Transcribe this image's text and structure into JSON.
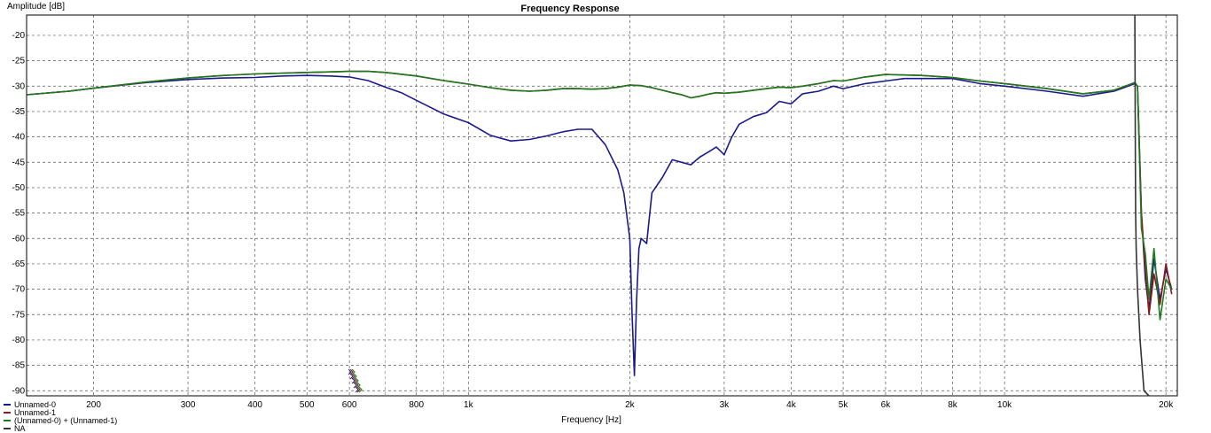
{
  "chart_data": {
    "type": "line",
    "title": "Frequency Response",
    "xlabel": "Frequency [Hz]",
    "ylabel": "Amplitude [dB]",
    "x_scale": "log",
    "xlim": [
      150,
      21000
    ],
    "ylim": [
      -91,
      -16
    ],
    "grid": true,
    "legend_position": "bottom-left",
    "x_ticks": [
      {
        "v": 200,
        "label": "200"
      },
      {
        "v": 300,
        "label": "300"
      },
      {
        "v": 400,
        "label": "400"
      },
      {
        "v": 500,
        "label": "500"
      },
      {
        "v": 600,
        "label": "600"
      },
      {
        "v": 800,
        "label": "800"
      },
      {
        "v": 1000,
        "label": "1k"
      },
      {
        "v": 2000,
        "label": "2k"
      },
      {
        "v": 3000,
        "label": "3k"
      },
      {
        "v": 4000,
        "label": "4k"
      },
      {
        "v": 5000,
        "label": "5k"
      },
      {
        "v": 6000,
        "label": "6k"
      },
      {
        "v": 8000,
        "label": "8k"
      },
      {
        "v": 10000,
        "label": "10k"
      },
      {
        "v": 20000,
        "label": "20k"
      }
    ],
    "x_minor": [
      700,
      900,
      7000,
      9000
    ],
    "y_ticks": [
      -20,
      -25,
      -30,
      -35,
      -40,
      -45,
      -50,
      -55,
      -60,
      -65,
      -70,
      -75,
      -80,
      -85,
      -90
    ],
    "series": [
      {
        "name": "Unnamed-0",
        "color": "#1a1a8c",
        "x": [
          150,
          180,
          200,
          250,
          300,
          350,
          400,
          450,
          500,
          550,
          600,
          650,
          700,
          750,
          800,
          900,
          1000,
          1100,
          1200,
          1300,
          1400,
          1500,
          1600,
          1700,
          1800,
          1900,
          1950,
          2000,
          2020,
          2040,
          2060,
          2080,
          2100,
          2150,
          2200,
          2300,
          2400,
          2500,
          2600,
          2700,
          2800,
          2900,
          3000,
          3100,
          3200,
          3400,
          3600,
          3800,
          4000,
          4200,
          4500,
          4800,
          5000,
          5500,
          6000,
          6500,
          7000,
          8000,
          9000,
          10000,
          12000,
          14000,
          16000,
          17000,
          17500,
          17700,
          18000,
          18300,
          18600,
          19000,
          19500,
          20000,
          20500
        ],
        "y": [
          -31.7,
          -31.0,
          -30.4,
          -29.3,
          -28.7,
          -28.4,
          -28.3,
          -28.0,
          -27.9,
          -28.0,
          -28.2,
          -28.9,
          -30.2,
          -31.3,
          -32.8,
          -35.5,
          -37.2,
          -39.7,
          -40.8,
          -40.5,
          -39.8,
          -39.0,
          -38.5,
          -38.5,
          -41.5,
          -46.5,
          -51.0,
          -60.0,
          -75.0,
          -87.0,
          -72.0,
          -62.0,
          -60.0,
          -61.0,
          -51.0,
          -48.0,
          -44.5,
          -45.0,
          -45.5,
          -44.0,
          -43.0,
          -42.0,
          -43.5,
          -40.0,
          -37.5,
          -36.0,
          -35.2,
          -33.0,
          -33.5,
          -31.5,
          -31.0,
          -30.0,
          -30.5,
          -29.5,
          -29.0,
          -28.5,
          -28.5,
          -28.5,
          -29.5,
          -30.0,
          -31.0,
          -32.0,
          -31.0,
          -30.0,
          -29.5,
          -30.0,
          -55.0,
          -68.0,
          -74.0,
          -64.0,
          -72.0,
          -66.0,
          -70.0
        ]
      },
      {
        "name": "Unnamed-1",
        "color": "#8b1a1a",
        "x": [
          150,
          180,
          200,
          250,
          300,
          350,
          400,
          500,
          600,
          650,
          700,
          800,
          900,
          1000,
          1100,
          1200,
          1300,
          1400,
          1500,
          1600,
          1700,
          1800,
          1900,
          2000,
          2100,
          2200,
          2300,
          2400,
          2500,
          2600,
          2700,
          2800,
          2900,
          3000,
          3200,
          3400,
          3600,
          3800,
          4000,
          4200,
          4500,
          4800,
          5000,
          5500,
          6000,
          6500,
          7000,
          8000,
          9000,
          10000,
          12000,
          14000,
          16000,
          17000,
          17500,
          17700,
          18000,
          18300,
          18600,
          19000,
          19500,
          20000,
          20500
        ],
        "y": [
          -31.7,
          -31.0,
          -30.4,
          -29.2,
          -28.4,
          -27.9,
          -27.6,
          -27.3,
          -27.1,
          -27.1,
          -27.3,
          -28.0,
          -28.9,
          -29.6,
          -30.3,
          -30.8,
          -31.0,
          -30.8,
          -30.5,
          -30.5,
          -30.6,
          -30.5,
          -30.2,
          -29.8,
          -29.9,
          -30.3,
          -30.8,
          -31.3,
          -31.7,
          -32.3,
          -32.0,
          -31.6,
          -31.3,
          -31.4,
          -31.2,
          -30.8,
          -30.5,
          -30.2,
          -30.3,
          -30.0,
          -29.5,
          -28.9,
          -29.0,
          -28.2,
          -27.7,
          -27.8,
          -27.9,
          -28.3,
          -29.0,
          -29.5,
          -30.5,
          -31.5,
          -30.8,
          -29.8,
          -29.3,
          -30.0,
          -55.0,
          -66.0,
          -75.0,
          -67.0,
          -73.0,
          -65.0,
          -71.0
        ]
      },
      {
        "name": "(Unnamed-0) + (Unnamed-1)",
        "color": "#1e7a1e",
        "x": [
          150,
          180,
          200,
          250,
          300,
          350,
          400,
          500,
          600,
          650,
          700,
          800,
          900,
          1000,
          1100,
          1200,
          1300,
          1400,
          1500,
          1600,
          1700,
          1800,
          1900,
          2000,
          2100,
          2200,
          2300,
          2400,
          2500,
          2600,
          2700,
          2800,
          2900,
          3000,
          3200,
          3400,
          3600,
          3800,
          4000,
          4200,
          4500,
          4800,
          5000,
          5500,
          6000,
          6500,
          7000,
          8000,
          9000,
          10000,
          12000,
          14000,
          16000,
          17000,
          17500,
          17700,
          18000,
          18300,
          18600,
          19000,
          19500,
          20000,
          20500
        ],
        "y": [
          -31.7,
          -31.0,
          -30.4,
          -29.2,
          -28.4,
          -27.9,
          -27.6,
          -27.3,
          -27.1,
          -27.1,
          -27.3,
          -28.0,
          -28.9,
          -29.6,
          -30.3,
          -30.8,
          -31.0,
          -30.8,
          -30.5,
          -30.5,
          -30.6,
          -30.5,
          -30.2,
          -29.8,
          -29.9,
          -30.3,
          -30.8,
          -31.3,
          -31.7,
          -32.3,
          -32.0,
          -31.6,
          -31.3,
          -31.4,
          -31.2,
          -30.8,
          -30.5,
          -30.2,
          -30.3,
          -30.0,
          -29.5,
          -28.9,
          -29.0,
          -28.2,
          -27.7,
          -27.8,
          -27.9,
          -28.3,
          -29.0,
          -29.5,
          -30.5,
          -31.5,
          -30.8,
          -29.8,
          -29.3,
          -30.0,
          -58.0,
          -63.0,
          -72.0,
          -62.0,
          -76.0,
          -68.0,
          -70.0
        ]
      },
      {
        "name": "NA",
        "color": "#333333",
        "x": [
          17500,
          17520,
          17540,
          17560,
          17600,
          17700,
          17900,
          18200,
          18600
        ],
        "y": [
          -16.0,
          -30.0,
          -45.0,
          -55.0,
          -62.0,
          -70.0,
          -80.0,
          -90.0,
          -91.0
        ]
      }
    ]
  }
}
